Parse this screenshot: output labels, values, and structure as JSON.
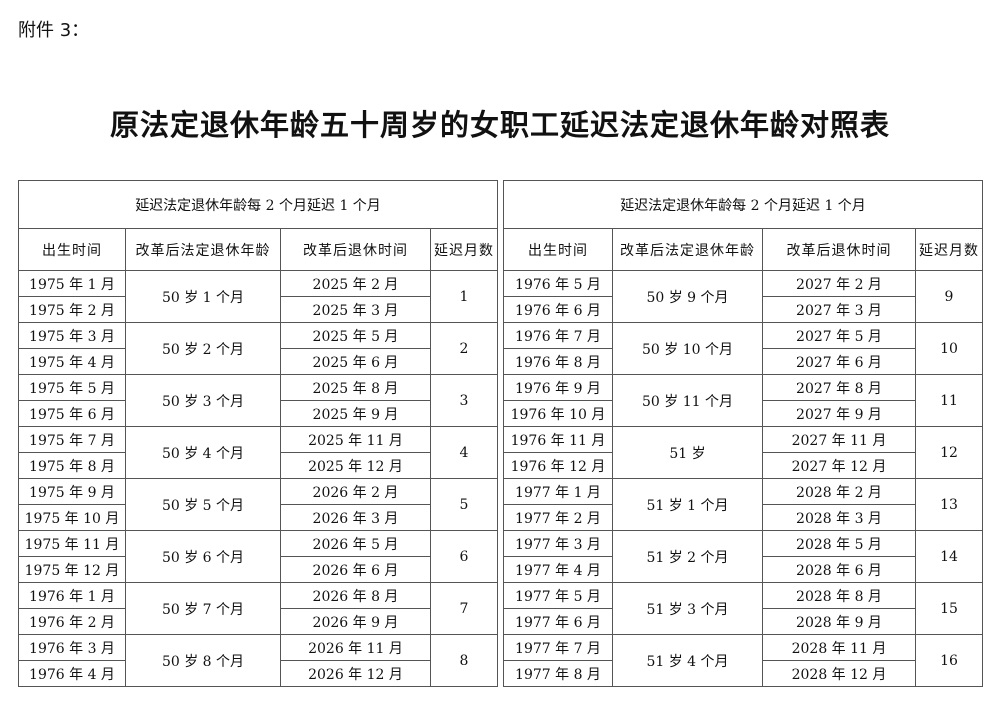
{
  "header": {
    "label": "附件 3："
  },
  "title": "原法定退休年龄五十周岁的女职工延迟法定退休年龄对照表",
  "tables": [
    {
      "caption": "延迟法定退休年龄每 2 个月延迟 1 个月",
      "columns": [
        "出生时间",
        "改革后法定退休年龄",
        "改革后退休时间",
        "延迟月数"
      ],
      "groups": [
        {
          "births": [
            "1975 年 1 月",
            "1975 年 2 月"
          ],
          "age": "50 岁 1 个月",
          "retire": [
            "2025 年 2 月",
            "2025 年 3 月"
          ],
          "delay": 1
        },
        {
          "births": [
            "1975 年 3 月",
            "1975 年 4 月"
          ],
          "age": "50 岁 2 个月",
          "retire": [
            "2025 年 5 月",
            "2025 年 6 月"
          ],
          "delay": 2
        },
        {
          "births": [
            "1975 年 5 月",
            "1975 年 6 月"
          ],
          "age": "50 岁 3 个月",
          "retire": [
            "2025 年 8 月",
            "2025 年 9 月"
          ],
          "delay": 3
        },
        {
          "births": [
            "1975 年 7 月",
            "1975 年 8 月"
          ],
          "age": "50 岁 4 个月",
          "retire": [
            "2025 年 11 月",
            "2025 年 12 月"
          ],
          "delay": 4
        },
        {
          "births": [
            "1975 年 9 月",
            "1975 年 10 月"
          ],
          "age": "50 岁 5 个月",
          "retire": [
            "2026 年 2 月",
            "2026 年 3 月"
          ],
          "delay": 5
        },
        {
          "births": [
            "1975 年 11 月",
            "1975 年 12 月"
          ],
          "age": "50 岁 6 个月",
          "retire": [
            "2026 年 5 月",
            "2026 年 6 月"
          ],
          "delay": 6
        },
        {
          "births": [
            "1976 年 1 月",
            "1976 年 2 月"
          ],
          "age": "50 岁 7 个月",
          "retire": [
            "2026 年 8 月",
            "2026 年 9 月"
          ],
          "delay": 7
        },
        {
          "births": [
            "1976 年 3 月",
            "1976 年 4 月"
          ],
          "age": "50 岁 8 个月",
          "retire": [
            "2026 年 11 月",
            "2026 年 12 月"
          ],
          "delay": 8
        }
      ]
    },
    {
      "caption": "延迟法定退休年龄每 2 个月延迟 1 个月",
      "columns": [
        "出生时间",
        "改革后法定退休年龄",
        "改革后退休时间",
        "延迟月数"
      ],
      "groups": [
        {
          "births": [
            "1976 年 5 月",
            "1976 年 6 月"
          ],
          "age": "50 岁 9 个月",
          "retire": [
            "2027 年 2 月",
            "2027 年 3 月"
          ],
          "delay": 9
        },
        {
          "births": [
            "1976 年 7 月",
            "1976 年 8 月"
          ],
          "age": "50 岁 10 个月",
          "retire": [
            "2027 年 5 月",
            "2027 年 6 月"
          ],
          "delay": 10
        },
        {
          "births": [
            "1976 年 9 月",
            "1976 年 10 月"
          ],
          "age": "50 岁 11 个月",
          "retire": [
            "2027 年 8 月",
            "2027 年 9 月"
          ],
          "delay": 11
        },
        {
          "births": [
            "1976 年 11 月",
            "1976 年 12 月"
          ],
          "age": "51 岁",
          "retire": [
            "2027 年 11 月",
            "2027 年 12 月"
          ],
          "delay": 12
        },
        {
          "births": [
            "1977 年 1 月",
            "1977 年 2 月"
          ],
          "age": "51 岁 1 个月",
          "retire": [
            "2028 年 2 月",
            "2028 年 3 月"
          ],
          "delay": 13
        },
        {
          "births": [
            "1977 年 3 月",
            "1977 年 4 月"
          ],
          "age": "51 岁 2 个月",
          "retire": [
            "2028 年 5 月",
            "2028 年 6 月"
          ],
          "delay": 14
        },
        {
          "births": [
            "1977 年 5 月",
            "1977 年 6 月"
          ],
          "age": "51 岁 3 个月",
          "retire": [
            "2028 年 8 月",
            "2028 年 9 月"
          ],
          "delay": 15
        },
        {
          "births": [
            "1977 年 7 月",
            "1977 年 8 月"
          ],
          "age": "51 岁 4 个月",
          "retire": [
            "2028 年 11 月",
            "2028 年 12 月"
          ],
          "delay": 16
        }
      ]
    }
  ]
}
